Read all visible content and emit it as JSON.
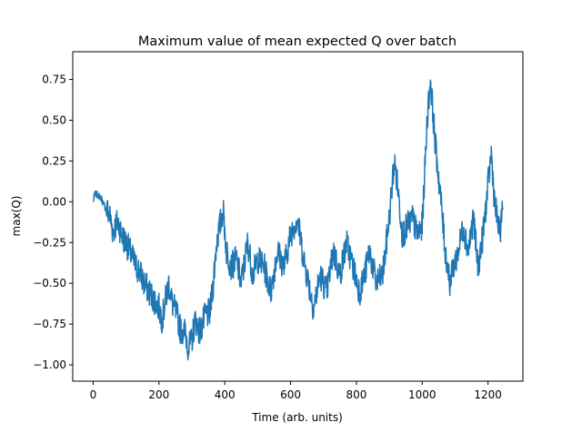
{
  "chart_data": {
    "type": "line",
    "title": "Maximum value of mean expected Q over batch",
    "xlabel": "Time (arb. units)",
    "ylabel": "max(Q)",
    "xlim": [
      -62,
      1306
    ],
    "ylim": [
      -1.1,
      0.92
    ],
    "xticks": [
      0,
      200,
      400,
      600,
      800,
      1000,
      1200
    ],
    "xtick_labels": [
      "0",
      "200",
      "400",
      "600",
      "800",
      "1000",
      "1200"
    ],
    "yticks": [
      -1.0,
      -0.75,
      -0.5,
      -0.25,
      0.0,
      0.25,
      0.5,
      0.75
    ],
    "ytick_labels": [
      "−1.00",
      "−0.75",
      "−0.50",
      "−0.25",
      "0.00",
      "0.25",
      "0.50",
      "0.75"
    ],
    "grid": false,
    "series": [
      {
        "color": "#1f77b4",
        "anchors": [
          [
            0,
            0.0
          ],
          [
            5,
            0.05
          ],
          [
            15,
            0.04
          ],
          [
            25,
            0.02
          ],
          [
            35,
            -0.03
          ],
          [
            50,
            -0.08
          ],
          [
            60,
            -0.18
          ],
          [
            75,
            -0.12
          ],
          [
            90,
            -0.22
          ],
          [
            100,
            -0.25
          ],
          [
            115,
            -0.32
          ],
          [
            130,
            -0.4
          ],
          [
            140,
            -0.42
          ],
          [
            155,
            -0.5
          ],
          [
            170,
            -0.55
          ],
          [
            185,
            -0.6
          ],
          [
            200,
            -0.65
          ],
          [
            210,
            -0.72
          ],
          [
            220,
            -0.6
          ],
          [
            230,
            -0.5
          ],
          [
            240,
            -0.62
          ],
          [
            255,
            -0.7
          ],
          [
            265,
            -0.78
          ],
          [
            280,
            -0.8
          ],
          [
            290,
            -0.9
          ],
          [
            300,
            -0.85
          ],
          [
            310,
            -0.72
          ],
          [
            325,
            -0.8
          ],
          [
            340,
            -0.7
          ],
          [
            355,
            -0.68
          ],
          [
            365,
            -0.5
          ],
          [
            375,
            -0.25
          ],
          [
            385,
            -0.15
          ],
          [
            395,
            -0.05
          ],
          [
            405,
            -0.3
          ],
          [
            420,
            -0.4
          ],
          [
            435,
            -0.35
          ],
          [
            450,
            -0.5
          ],
          [
            470,
            -0.25
          ],
          [
            485,
            -0.45
          ],
          [
            500,
            -0.35
          ],
          [
            520,
            -0.4
          ],
          [
            540,
            -0.55
          ],
          [
            560,
            -0.3
          ],
          [
            580,
            -0.4
          ],
          [
            600,
            -0.2
          ],
          [
            620,
            -0.1
          ],
          [
            640,
            -0.35
          ],
          [
            655,
            -0.5
          ],
          [
            670,
            -0.65
          ],
          [
            690,
            -0.45
          ],
          [
            710,
            -0.55
          ],
          [
            730,
            -0.3
          ],
          [
            750,
            -0.45
          ],
          [
            770,
            -0.25
          ],
          [
            790,
            -0.4
          ],
          [
            810,
            -0.55
          ],
          [
            825,
            -0.45
          ],
          [
            840,
            -0.3
          ],
          [
            860,
            -0.5
          ],
          [
            880,
            -0.45
          ],
          [
            900,
            -0.1
          ],
          [
            915,
            0.25
          ],
          [
            925,
            0.1
          ],
          [
            940,
            -0.2
          ],
          [
            955,
            -0.15
          ],
          [
            970,
            -0.1
          ],
          [
            985,
            -0.2
          ],
          [
            1000,
            -0.15
          ],
          [
            1015,
            0.5
          ],
          [
            1025,
            0.75
          ],
          [
            1040,
            0.35
          ],
          [
            1055,
            0.05
          ],
          [
            1070,
            -0.3
          ],
          [
            1085,
            -0.5
          ],
          [
            1095,
            -0.4
          ],
          [
            1110,
            -0.3
          ],
          [
            1125,
            -0.15
          ],
          [
            1140,
            -0.3
          ],
          [
            1155,
            -0.1
          ],
          [
            1170,
            -0.4
          ],
          [
            1185,
            -0.2
          ],
          [
            1200,
            0.1
          ],
          [
            1210,
            0.3
          ],
          [
            1220,
            0.0
          ],
          [
            1235,
            -0.2
          ],
          [
            1245,
            -0.05
          ]
        ]
      }
    ]
  }
}
